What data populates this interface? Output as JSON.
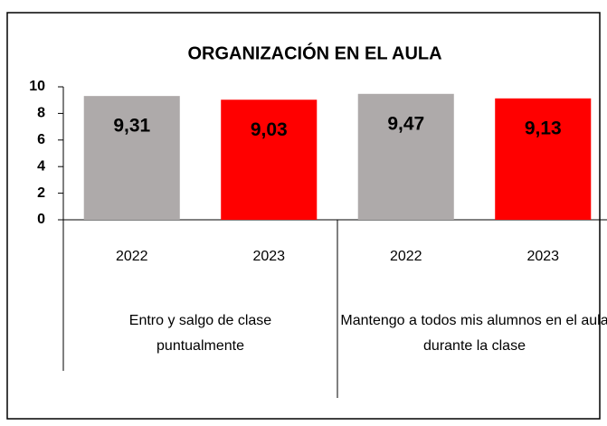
{
  "chart_data": {
    "type": "bar",
    "title": "ORGANIZACIÓN EN EL AULA",
    "groups": [
      {
        "name": "Entro y salgo de clase puntualmente",
        "categories": [
          "2022",
          "2023"
        ],
        "values": [
          9.31,
          9.03
        ],
        "value_labels": [
          "9,31",
          "9,03"
        ]
      },
      {
        "name": "Mantengo a todos mis alumnos en el aula durante la clase",
        "categories": [
          "2022",
          "2023"
        ],
        "values": [
          9.47,
          9.13
        ],
        "value_labels": [
          "9,47",
          "9,13"
        ]
      }
    ],
    "colors": [
      "#aeaaaa",
      "#ff0000"
    ],
    "ylim": [
      0,
      10
    ],
    "yticks": [
      0,
      2,
      4,
      6,
      8,
      10
    ],
    "grid": false
  }
}
